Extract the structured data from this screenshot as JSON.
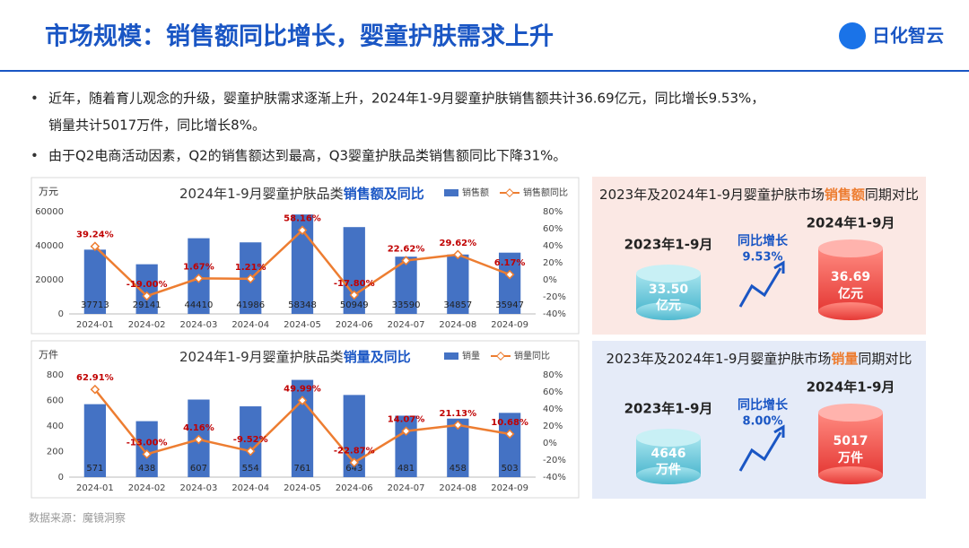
{
  "header": {
    "title": "市场规模：销售额同比增长，婴童护肤需求上升",
    "logo": "日化智云"
  },
  "bullets": [
    [
      "近年，随着育儿观念的升级，婴童护肤需求逐渐上升，2024年1-9月婴童护肤销售额共计36.69亿元，同比增长9.53%，",
      "销量共计5017万件，同比增长8%。"
    ],
    [
      "由于Q2电商活动因素，Q2的销售额达到最高，Q3婴童护肤品类销售额同比下降31%。"
    ]
  ],
  "chart_data": [
    {
      "type": "bar",
      "title": [
        "2024年1-9月婴童护肤品类",
        "销售额及同比"
      ],
      "y_label": "万元",
      "categories": [
        "2024-01",
        "2024-02",
        "2024-03",
        "2024-04",
        "2024-05",
        "2024-06",
        "2024-07",
        "2024-08",
        "2024-09"
      ],
      "series": [
        {
          "name": "销售额",
          "type": "bar",
          "color": "#4472c4",
          "values": [
            37713,
            29141,
            44410,
            41986,
            58348,
            50949,
            33590,
            34857,
            35947
          ]
        },
        {
          "name": "销售额同比",
          "type": "line",
          "axis": "y2",
          "color": "#ed7d31",
          "values": [
            39.24,
            -19.0,
            1.67,
            1.21,
            58.16,
            -17.8,
            22.62,
            29.62,
            6.17
          ],
          "value_labels": [
            "39.24%",
            "-19.00%",
            "1.67%",
            "1.21%",
            "58.16%",
            "-17.80%",
            "22.62%",
            "29.62%",
            "6.17%"
          ]
        }
      ],
      "ylim": [
        0,
        60000
      ],
      "yticks": [
        0,
        20000,
        40000,
        60000
      ],
      "y2lim": [
        -40,
        80
      ],
      "y2ticks": [
        {
          "value": -40,
          "label": "-40%"
        },
        {
          "value": -20,
          "label": "-20%"
        },
        {
          "value": 0,
          "label": "0%"
        },
        {
          "value": 20,
          "label": "20%"
        },
        {
          "value": 40,
          "label": "40%"
        },
        {
          "value": 60,
          "label": "60%"
        },
        {
          "value": 80,
          "label": "80%"
        }
      ],
      "grid": false
    },
    {
      "type": "bar",
      "title": [
        "2024年1-9月婴童护肤品类",
        "销量及同比"
      ],
      "y_label": "万件",
      "categories": [
        "2024-01",
        "2024-02",
        "2024-03",
        "2024-04",
        "2024-05",
        "2024-06",
        "2024-07",
        "2024-08",
        "2024-09"
      ],
      "series": [
        {
          "name": "销量",
          "type": "bar",
          "color": "#4472c4",
          "values": [
            571,
            438,
            607,
            554,
            761,
            643,
            481,
            458,
            503
          ]
        },
        {
          "name": "销量同比",
          "type": "line",
          "axis": "y2",
          "color": "#ed7d31",
          "values": [
            62.91,
            -13.0,
            4.16,
            -9.52,
            49.99,
            -22.87,
            14.07,
            21.13,
            10.68
          ],
          "value_labels": [
            "62.91%",
            "-13.00%",
            "4.16%",
            "-9.52%",
            "49.99%",
            "-22.87%",
            "14.07%",
            "21.13%",
            "10.68%"
          ]
        }
      ],
      "ylim": [
        0,
        800
      ],
      "yticks": [
        0,
        200,
        400,
        600,
        800
      ],
      "y2lim": [
        -40,
        80
      ],
      "y2ticks": [
        {
          "value": -40,
          "label": "-40%"
        },
        {
          "value": -20,
          "label": "-20%"
        },
        {
          "value": 0,
          "label": "0%"
        },
        {
          "value": 20,
          "label": "20%"
        },
        {
          "value": 40,
          "label": "40%"
        },
        {
          "value": 60,
          "label": "60%"
        },
        {
          "value": 80,
          "label": "80%"
        }
      ],
      "grid": false
    }
  ],
  "panels": [
    {
      "title": [
        "2023年及2024年1-9月婴童护肤市场",
        "销售额",
        "同期对比"
      ],
      "left_period": "2023年1-9月",
      "left_value": "33.50",
      "left_unit": "亿元",
      "growth_label": "同比增长",
      "growth_value": "9.53%",
      "right_period": "2024年1-9月",
      "right_value": "36.69",
      "right_unit": "亿元"
    },
    {
      "title": [
        "2023年及2024年1-9月婴童护肤市场",
        "销量",
        "同期对比"
      ],
      "left_period": "2023年1-9月",
      "left_value": "4646",
      "left_unit": "万件",
      "growth_label": "同比增长",
      "growth_value": "8.00%",
      "right_period": "2024年1-9月",
      "right_value": "5017",
      "right_unit": "万件"
    }
  ],
  "source": "数据来源：魔镜洞察"
}
